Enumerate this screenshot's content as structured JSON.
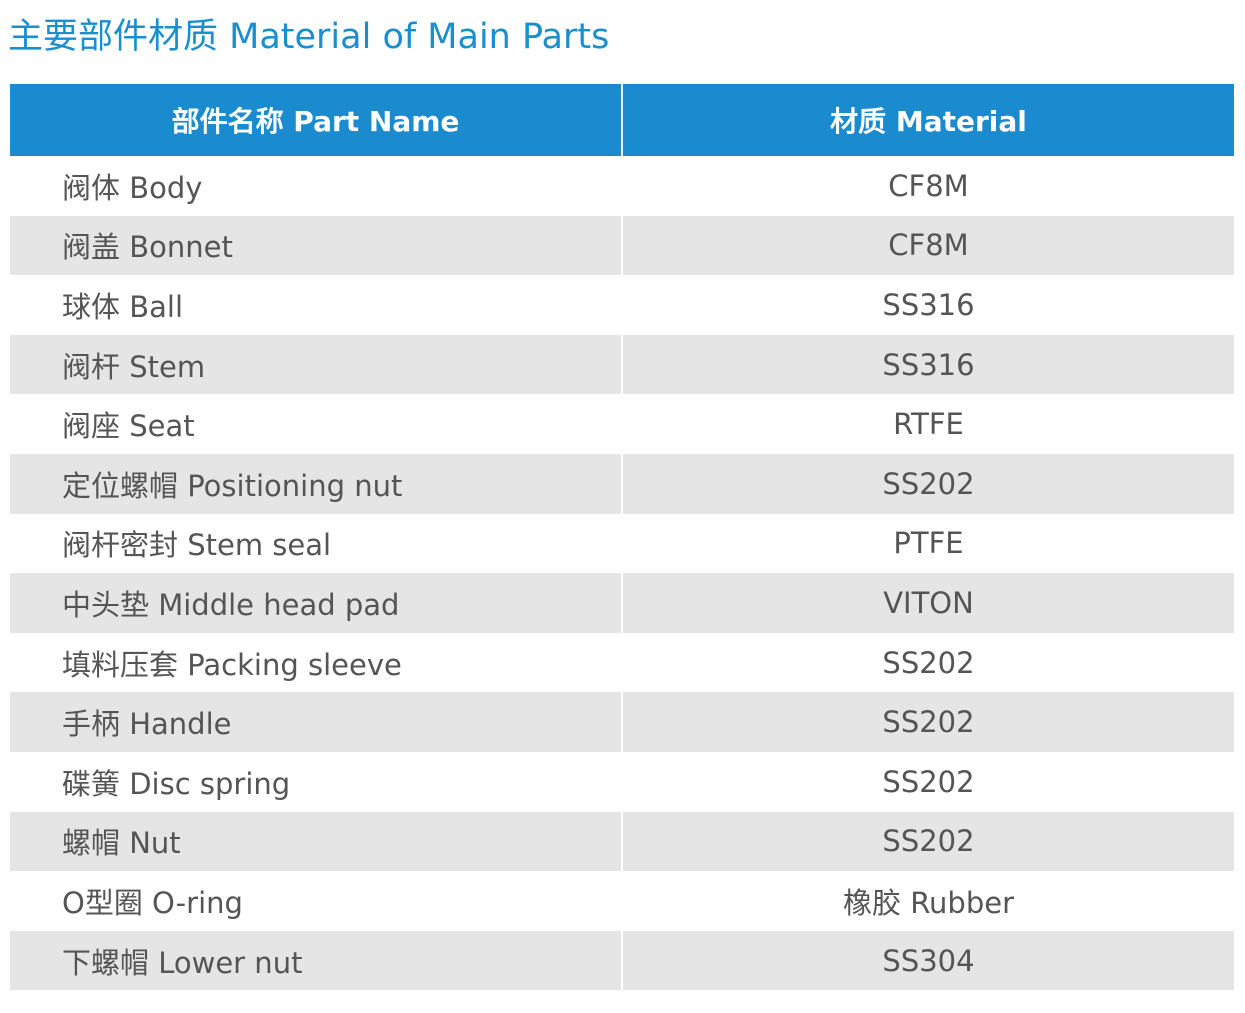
{
  "title": "主要部件材质 Material of Main Parts",
  "table": {
    "headers": {
      "part_name": "部件名称 Part Name",
      "material": "材质 Material"
    },
    "rows": [
      {
        "part": "阀体 Body",
        "material": "CF8M"
      },
      {
        "part": "阀盖 Bonnet",
        "material": "CF8M"
      },
      {
        "part": "球体 Ball",
        "material": "SS316"
      },
      {
        "part": "阀杆 Stem",
        "material": "SS316"
      },
      {
        "part": "阀座 Seat",
        "material": "RTFE"
      },
      {
        "part": "定位螺帽 Positioning nut",
        "material": "SS202"
      },
      {
        "part": "阀杆密封 Stem seal",
        "material": "PTFE"
      },
      {
        "part": "中头垫 Middle head pad",
        "material": "VITON"
      },
      {
        "part": "填料压套 Packing sleeve",
        "material": "SS202"
      },
      {
        "part": "手柄 Handle",
        "material": "SS202"
      },
      {
        "part": "碟簧 Disc spring",
        "material": "SS202"
      },
      {
        "part": "螺帽 Nut",
        "material": "SS202"
      },
      {
        "part": "O型圈 O-ring",
        "material": "橡胶 Rubber"
      },
      {
        "part": "下螺帽 Lower nut",
        "material": "SS304"
      }
    ]
  },
  "colors": {
    "title": "#1a8fcf",
    "header_bg": "#1a8bcf",
    "header_text": "#ffffff",
    "alt_row_bg": "#e5e5e5",
    "body_text": "#555555"
  }
}
